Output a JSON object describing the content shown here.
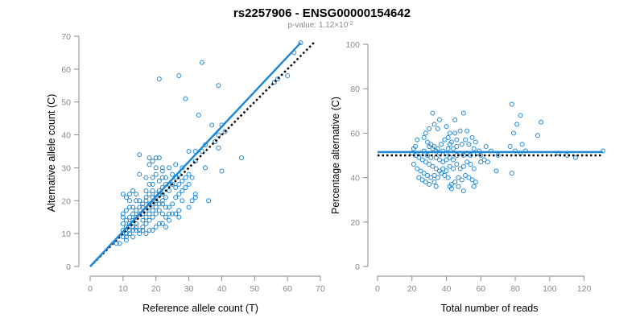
{
  "title": "rs2257906 - ENSG00000154642",
  "subtitle": {
    "prefix": "p-value: 1.12×10",
    "exponent": "-2"
  },
  "colors": {
    "point": "#1f88d8",
    "fit": "#1f88d8",
    "reference": "#000000",
    "axis": "#8a8a8a"
  },
  "chart_data": [
    {
      "type": "scatter",
      "xlabel": "Reference allele count (T)",
      "ylabel": "Alternative allele count (C)",
      "xlim": [
        0,
        70
      ],
      "ylim": [
        0,
        70
      ],
      "xticks": [
        0,
        10,
        20,
        30,
        40,
        50,
        60,
        70
      ],
      "yticks": [
        0,
        10,
        20,
        30,
        40,
        50,
        60,
        70
      ],
      "fit_line": {
        "style": "solid",
        "x1": 0,
        "y1": 0,
        "x2": 64,
        "y2": 68
      },
      "reference_line": {
        "style": "dotted",
        "x1": 0,
        "y1": 0,
        "x2": 68,
        "y2": 68
      },
      "points": [
        [
          62,
          65
        ],
        [
          64,
          68
        ],
        [
          60,
          58
        ],
        [
          56,
          56
        ],
        [
          57,
          57
        ],
        [
          34,
          62
        ],
        [
          27,
          58
        ],
        [
          21,
          57
        ],
        [
          39,
          55
        ],
        [
          29,
          51
        ],
        [
          33,
          46
        ],
        [
          37,
          43
        ],
        [
          40,
          43
        ],
        [
          39,
          40
        ],
        [
          41,
          41
        ],
        [
          38,
          38
        ],
        [
          39,
          36
        ],
        [
          46,
          33
        ],
        [
          40,
          29
        ],
        [
          36,
          20
        ],
        [
          30,
          35
        ],
        [
          32,
          35
        ],
        [
          34,
          35
        ],
        [
          32,
          32
        ],
        [
          35,
          30
        ],
        [
          28,
          30
        ],
        [
          26,
          31
        ],
        [
          24,
          30
        ],
        [
          22,
          30
        ],
        [
          30,
          28
        ],
        [
          29,
          27
        ],
        [
          27,
          28
        ],
        [
          25,
          28
        ],
        [
          31,
          27
        ],
        [
          25,
          25
        ],
        [
          26,
          24
        ],
        [
          27,
          25
        ],
        [
          23,
          27
        ],
        [
          21,
          26
        ],
        [
          22,
          24
        ],
        [
          24,
          23
        ],
        [
          26,
          21
        ],
        [
          28,
          20
        ],
        [
          31,
          20
        ],
        [
          32,
          22
        ],
        [
          32,
          21
        ],
        [
          30,
          18
        ],
        [
          27,
          17
        ],
        [
          24,
          18
        ],
        [
          22,
          19
        ],
        [
          20,
          21
        ],
        [
          20,
          22
        ],
        [
          21,
          23
        ],
        [
          19,
          25
        ],
        [
          17,
          27
        ],
        [
          15,
          28
        ],
        [
          15,
          34
        ],
        [
          18,
          31
        ],
        [
          19,
          32
        ],
        [
          20,
          33
        ],
        [
          21,
          33
        ],
        [
          18,
          33
        ],
        [
          22,
          29
        ],
        [
          20,
          30
        ],
        [
          23,
          21
        ],
        [
          19,
          21
        ],
        [
          17,
          20
        ],
        [
          18,
          19
        ],
        [
          20,
          18
        ],
        [
          21,
          17
        ],
        [
          22,
          16
        ],
        [
          23,
          15
        ],
        [
          24,
          14
        ],
        [
          25,
          16
        ],
        [
          26,
          16
        ],
        [
          27,
          15
        ],
        [
          25,
          19
        ],
        [
          20,
          16
        ],
        [
          19,
          15
        ],
        [
          18,
          14
        ],
        [
          17,
          13
        ],
        [
          16,
          12
        ],
        [
          15,
          11
        ],
        [
          14,
          11
        ],
        [
          13,
          12
        ],
        [
          12,
          10
        ],
        [
          11,
          10
        ],
        [
          10,
          11
        ],
        [
          11,
          12
        ],
        [
          10,
          13
        ],
        [
          11,
          14
        ],
        [
          12,
          15
        ],
        [
          10,
          15
        ],
        [
          10,
          16
        ],
        [
          11,
          17
        ],
        [
          12,
          18
        ],
        [
          13,
          16
        ],
        [
          14,
          17
        ],
        [
          15,
          18
        ],
        [
          16,
          16
        ],
        [
          17,
          15
        ],
        [
          18,
          16
        ],
        [
          19,
          17
        ],
        [
          16,
          18
        ],
        [
          15,
          16
        ],
        [
          14,
          15
        ],
        [
          13,
          14
        ],
        [
          12,
          13
        ],
        [
          14,
          13
        ],
        [
          16,
          14
        ],
        [
          17,
          17
        ],
        [
          18,
          18
        ],
        [
          19,
          19
        ],
        [
          20,
          20
        ],
        [
          21,
          19
        ],
        [
          22,
          20
        ],
        [
          23,
          18
        ],
        [
          24,
          16
        ],
        [
          21,
          13
        ],
        [
          20,
          12
        ],
        [
          22,
          13
        ],
        [
          23,
          12
        ],
        [
          19,
          11
        ],
        [
          18,
          11
        ],
        [
          17,
          10
        ],
        [
          15,
          10
        ],
        [
          10,
          22
        ],
        [
          11,
          21
        ],
        [
          12,
          22
        ],
        [
          13,
          23
        ],
        [
          14,
          22
        ],
        [
          16,
          19
        ],
        [
          17,
          21
        ],
        [
          18,
          22
        ],
        [
          19,
          23
        ],
        [
          21,
          22
        ],
        [
          22,
          22
        ],
        [
          16,
          11
        ],
        [
          11,
          8
        ],
        [
          9,
          7
        ],
        [
          13,
          18
        ],
        [
          12,
          20
        ],
        [
          14,
          20
        ],
        [
          15,
          20
        ],
        [
          17,
          23
        ],
        [
          18,
          25
        ],
        [
          19,
          27
        ],
        [
          20,
          28
        ],
        [
          22,
          27
        ],
        [
          23,
          25
        ],
        [
          24,
          25
        ],
        [
          26,
          27
        ],
        [
          27,
          22
        ],
        [
          28,
          23
        ],
        [
          29,
          24
        ],
        [
          30,
          25
        ],
        [
          28,
          26
        ],
        [
          12,
          11
        ],
        [
          13,
          11
        ],
        [
          14,
          12
        ],
        [
          8,
          7
        ],
        [
          10,
          9
        ],
        [
          11,
          9
        ],
        [
          13,
          9
        ],
        [
          35,
          37
        ]
      ]
    },
    {
      "type": "scatter",
      "xlabel": "Total number of reads",
      "ylabel": "Percentage alternative (C)",
      "xlim": [
        0,
        130
      ],
      "ylim": [
        0,
        100
      ],
      "xticks": [
        0,
        20,
        40,
        60,
        80,
        100,
        120
      ],
      "yticks": [
        0,
        20,
        40,
        60,
        80,
        100
      ],
      "fit_line": {
        "style": "solid",
        "x1": 0,
        "y1": 51.5,
        "x2": 131,
        "y2": 51.5
      },
      "reference_line": {
        "style": "dotted",
        "x1": 0,
        "y1": 50,
        "x2": 131,
        "y2": 50
      },
      "points": [
        [
          78,
          73
        ],
        [
          83,
          68
        ],
        [
          95,
          65
        ],
        [
          81,
          64
        ],
        [
          79,
          60
        ],
        [
          93,
          59
        ],
        [
          84,
          55
        ],
        [
          77,
          54
        ],
        [
          80,
          52
        ],
        [
          83,
          51
        ],
        [
          86,
          52
        ],
        [
          66,
          52
        ],
        [
          63,
          54
        ],
        [
          70,
          50
        ],
        [
          69,
          43
        ],
        [
          78,
          42
        ],
        [
          105,
          51
        ],
        [
          110,
          50
        ],
        [
          115,
          49
        ],
        [
          131,
          52
        ],
        [
          32,
          69
        ],
        [
          36,
          66
        ],
        [
          45,
          66
        ],
        [
          50,
          69
        ],
        [
          33,
          64
        ],
        [
          35,
          62
        ],
        [
          40,
          63
        ],
        [
          42,
          60
        ],
        [
          45,
          60
        ],
        [
          48,
          61
        ],
        [
          52,
          61
        ],
        [
          55,
          58
        ],
        [
          30,
          62
        ],
        [
          28,
          60
        ],
        [
          27,
          58
        ],
        [
          29,
          56
        ],
        [
          31,
          55
        ],
        [
          33,
          54
        ],
        [
          35,
          53
        ],
        [
          37,
          55
        ],
        [
          39,
          57
        ],
        [
          41,
          58
        ],
        [
          43,
          56
        ],
        [
          46,
          57
        ],
        [
          49,
          55
        ],
        [
          51,
          57
        ],
        [
          53,
          55
        ],
        [
          57,
          56
        ],
        [
          56,
          53
        ],
        [
          59,
          52
        ],
        [
          23,
          57
        ],
        [
          22,
          54
        ],
        [
          21,
          53
        ],
        [
          20,
          51
        ],
        [
          22,
          50
        ],
        [
          24,
          49
        ],
        [
          26,
          48
        ],
        [
          28,
          47
        ],
        [
          30,
          46
        ],
        [
          32,
          45
        ],
        [
          34,
          44
        ],
        [
          36,
          43
        ],
        [
          38,
          44
        ],
        [
          40,
          43
        ],
        [
          42,
          45
        ],
        [
          44,
          44
        ],
        [
          46,
          46
        ],
        [
          48,
          44
        ],
        [
          50,
          45
        ],
        [
          52,
          47
        ],
        [
          54,
          46
        ],
        [
          56,
          44
        ],
        [
          25,
          51
        ],
        [
          27,
          52
        ],
        [
          29,
          50
        ],
        [
          31,
          49
        ],
        [
          34,
          49
        ],
        [
          36,
          48
        ],
        [
          38,
          47
        ],
        [
          40,
          48
        ],
        [
          42,
          49
        ],
        [
          44,
          48
        ],
        [
          46,
          50
        ],
        [
          48,
          51
        ],
        [
          50,
          50
        ],
        [
          52,
          51
        ],
        [
          54,
          50
        ],
        [
          58,
          51
        ],
        [
          60,
          50
        ],
        [
          21,
          46
        ],
        [
          23,
          44
        ],
        [
          25,
          43
        ],
        [
          27,
          42
        ],
        [
          29,
          41
        ],
        [
          31,
          40
        ],
        [
          33,
          41
        ],
        [
          35,
          40
        ],
        [
          37,
          42
        ],
        [
          39,
          41
        ],
        [
          41,
          40
        ],
        [
          43,
          37
        ],
        [
          45,
          38
        ],
        [
          47,
          40
        ],
        [
          49,
          39
        ],
        [
          51,
          41
        ],
        [
          53,
          40
        ],
        [
          55,
          39
        ],
        [
          57,
          38
        ],
        [
          33,
          38
        ],
        [
          30,
          37
        ],
        [
          34,
          36
        ],
        [
          42,
          36
        ],
        [
          47,
          36
        ],
        [
          43,
          35
        ],
        [
          50,
          34
        ],
        [
          56,
          36
        ],
        [
          24,
          40
        ],
        [
          26,
          39
        ],
        [
          28,
          38
        ],
        [
          60,
          47
        ],
        [
          62,
          48
        ],
        [
          64,
          47
        ],
        [
          44,
          53
        ],
        [
          46,
          54
        ],
        [
          30,
          54
        ],
        [
          32,
          53
        ],
        [
          34,
          52
        ],
        [
          36,
          51
        ],
        [
          38,
          52
        ],
        [
          40,
          51
        ],
        [
          41,
          53
        ],
        [
          42,
          55
        ]
      ]
    }
  ]
}
